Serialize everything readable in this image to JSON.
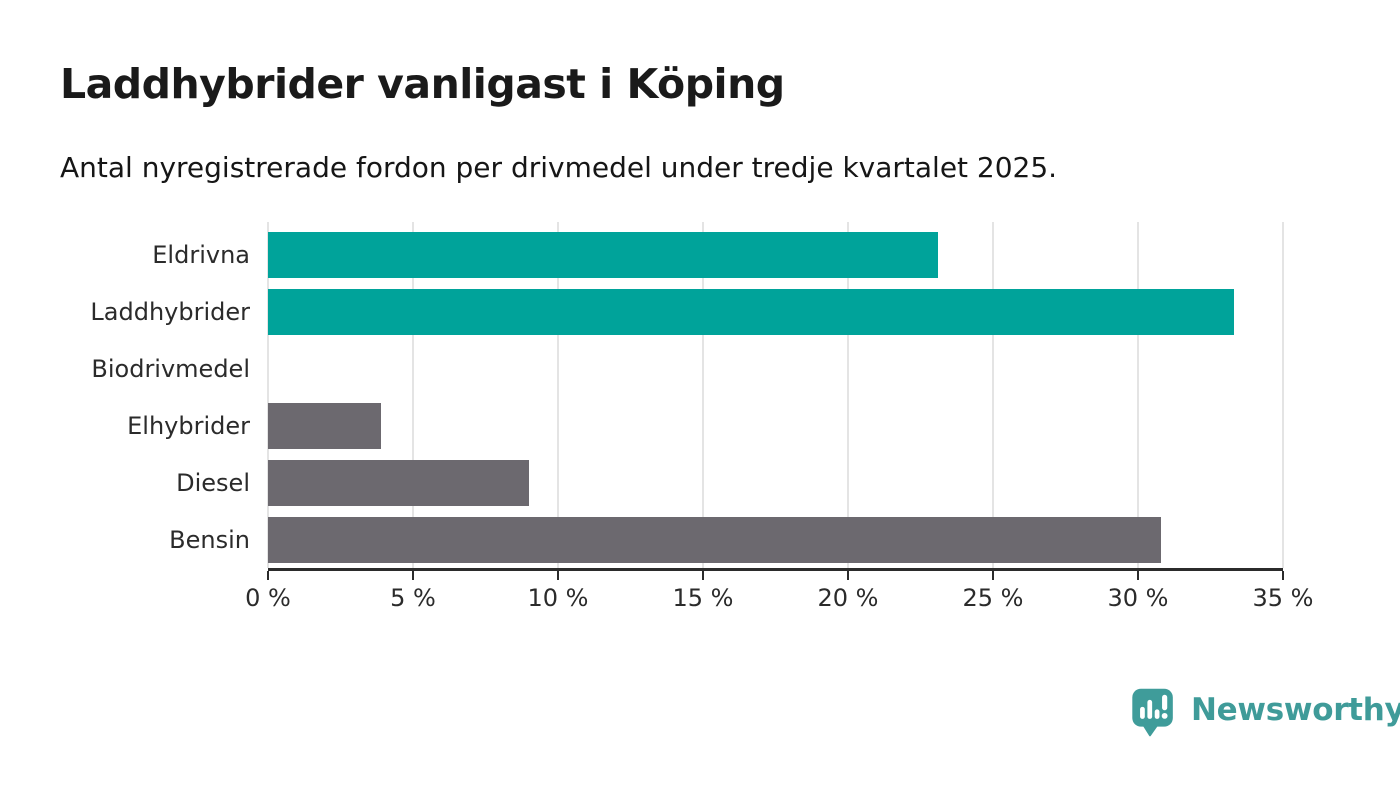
{
  "chart_data": {
    "type": "bar",
    "orientation": "horizontal",
    "title": "Laddhybrider vanligast i Köping",
    "subtitle": "Antal nyregistrerade fordon per drivmedel under tredje kvartalet 2025.",
    "categories": [
      "Eldrivna",
      "Laddhybrider",
      "Biodrivmedel",
      "Elhybrider",
      "Diesel",
      "Bensin"
    ],
    "values": [
      23.1,
      33.3,
      0,
      3.9,
      9,
      30.8
    ],
    "unit": "%",
    "xlabel": "",
    "ylabel": "",
    "xlim": [
      0,
      35
    ],
    "x_ticks": [
      0,
      5,
      10,
      15,
      20,
      25,
      30,
      35
    ],
    "x_tick_labels": [
      "0 %",
      "5 %",
      "10 %",
      "15 %",
      "20 %",
      "25 %",
      "30 %",
      "35 %"
    ],
    "grid": "vertical-light-gridlines",
    "legend": "none",
    "colors": {
      "highlight_bar": "#00a39a",
      "default_bar": "#6c696f",
      "bar_color_per_category": [
        "#00a39a",
        "#00a39a",
        "#6c696f",
        "#6c696f",
        "#6c696f",
        "#6c696f"
      ],
      "gridline": "#e4e4e4",
      "axis_line": "#2b2b2b",
      "text": "#1a1a1a"
    }
  },
  "footer": {
    "brand": "Newsworthy",
    "logo_icon": "newsworthy-pin-barchart-icon",
    "brand_text_color": "#3f9b99",
    "icon_color": "#3f9c9a"
  }
}
